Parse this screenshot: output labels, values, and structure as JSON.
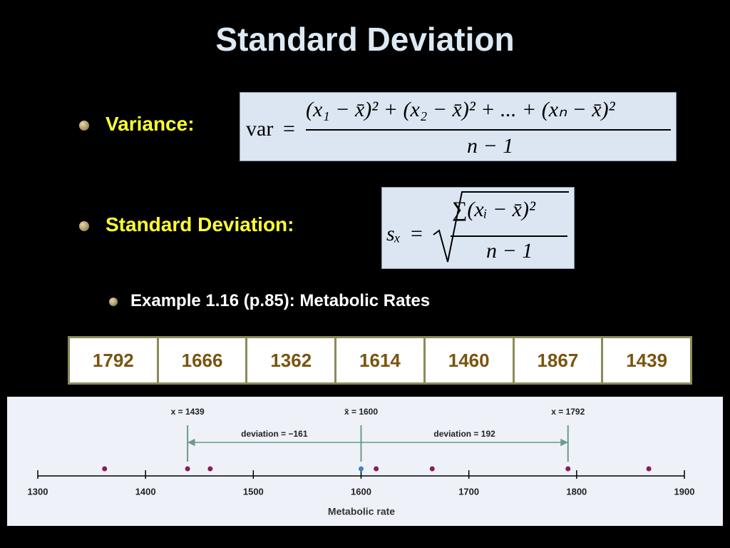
{
  "title": "Standard Deviation",
  "bullets": [
    {
      "label": "Variance:",
      "formula": {
        "lhs": "var",
        "eq": "=",
        "numerator": "(x₁ − x̄)² + (x₂ − x̄)² + ... + (xₙ − x̄)²",
        "denominator": "n − 1"
      }
    },
    {
      "label": "Standard Deviation:",
      "formula": {
        "lhs": "sₓ",
        "eq": "=",
        "numerator": "∑(xᵢ − x̄)²",
        "denominator": "n − 1"
      }
    }
  ],
  "example": "Example 1.16 (p.85):  Metabolic Rates",
  "table": {
    "rows": [
      [
        1792,
        1666,
        1362,
        1614,
        1460,
        1867,
        1439
      ]
    ]
  },
  "chart_data": {
    "type": "dotplot",
    "xlabel": "Metabolic rate",
    "x": [
      1792,
      1666,
      1362,
      1614,
      1460,
      1867,
      1439
    ],
    "color": "#8b1a5a",
    "mean": 1600,
    "mean_color": "#4a7fc0",
    "xlim": [
      1300,
      1900
    ],
    "xticks": [
      1300,
      1400,
      1500,
      1600,
      1700,
      1800,
      1900
    ],
    "markers": [
      {
        "x": 1439,
        "label": "x = 1439"
      },
      {
        "x": 1600,
        "label": "x̄ = 1600"
      },
      {
        "x": 1792,
        "label": "x = 1792"
      }
    ],
    "deviations": [
      {
        "from": 1600,
        "to": 1439,
        "label": "deviation = −161"
      },
      {
        "from": 1600,
        "to": 1792,
        "label": "deviation = 192"
      }
    ]
  }
}
